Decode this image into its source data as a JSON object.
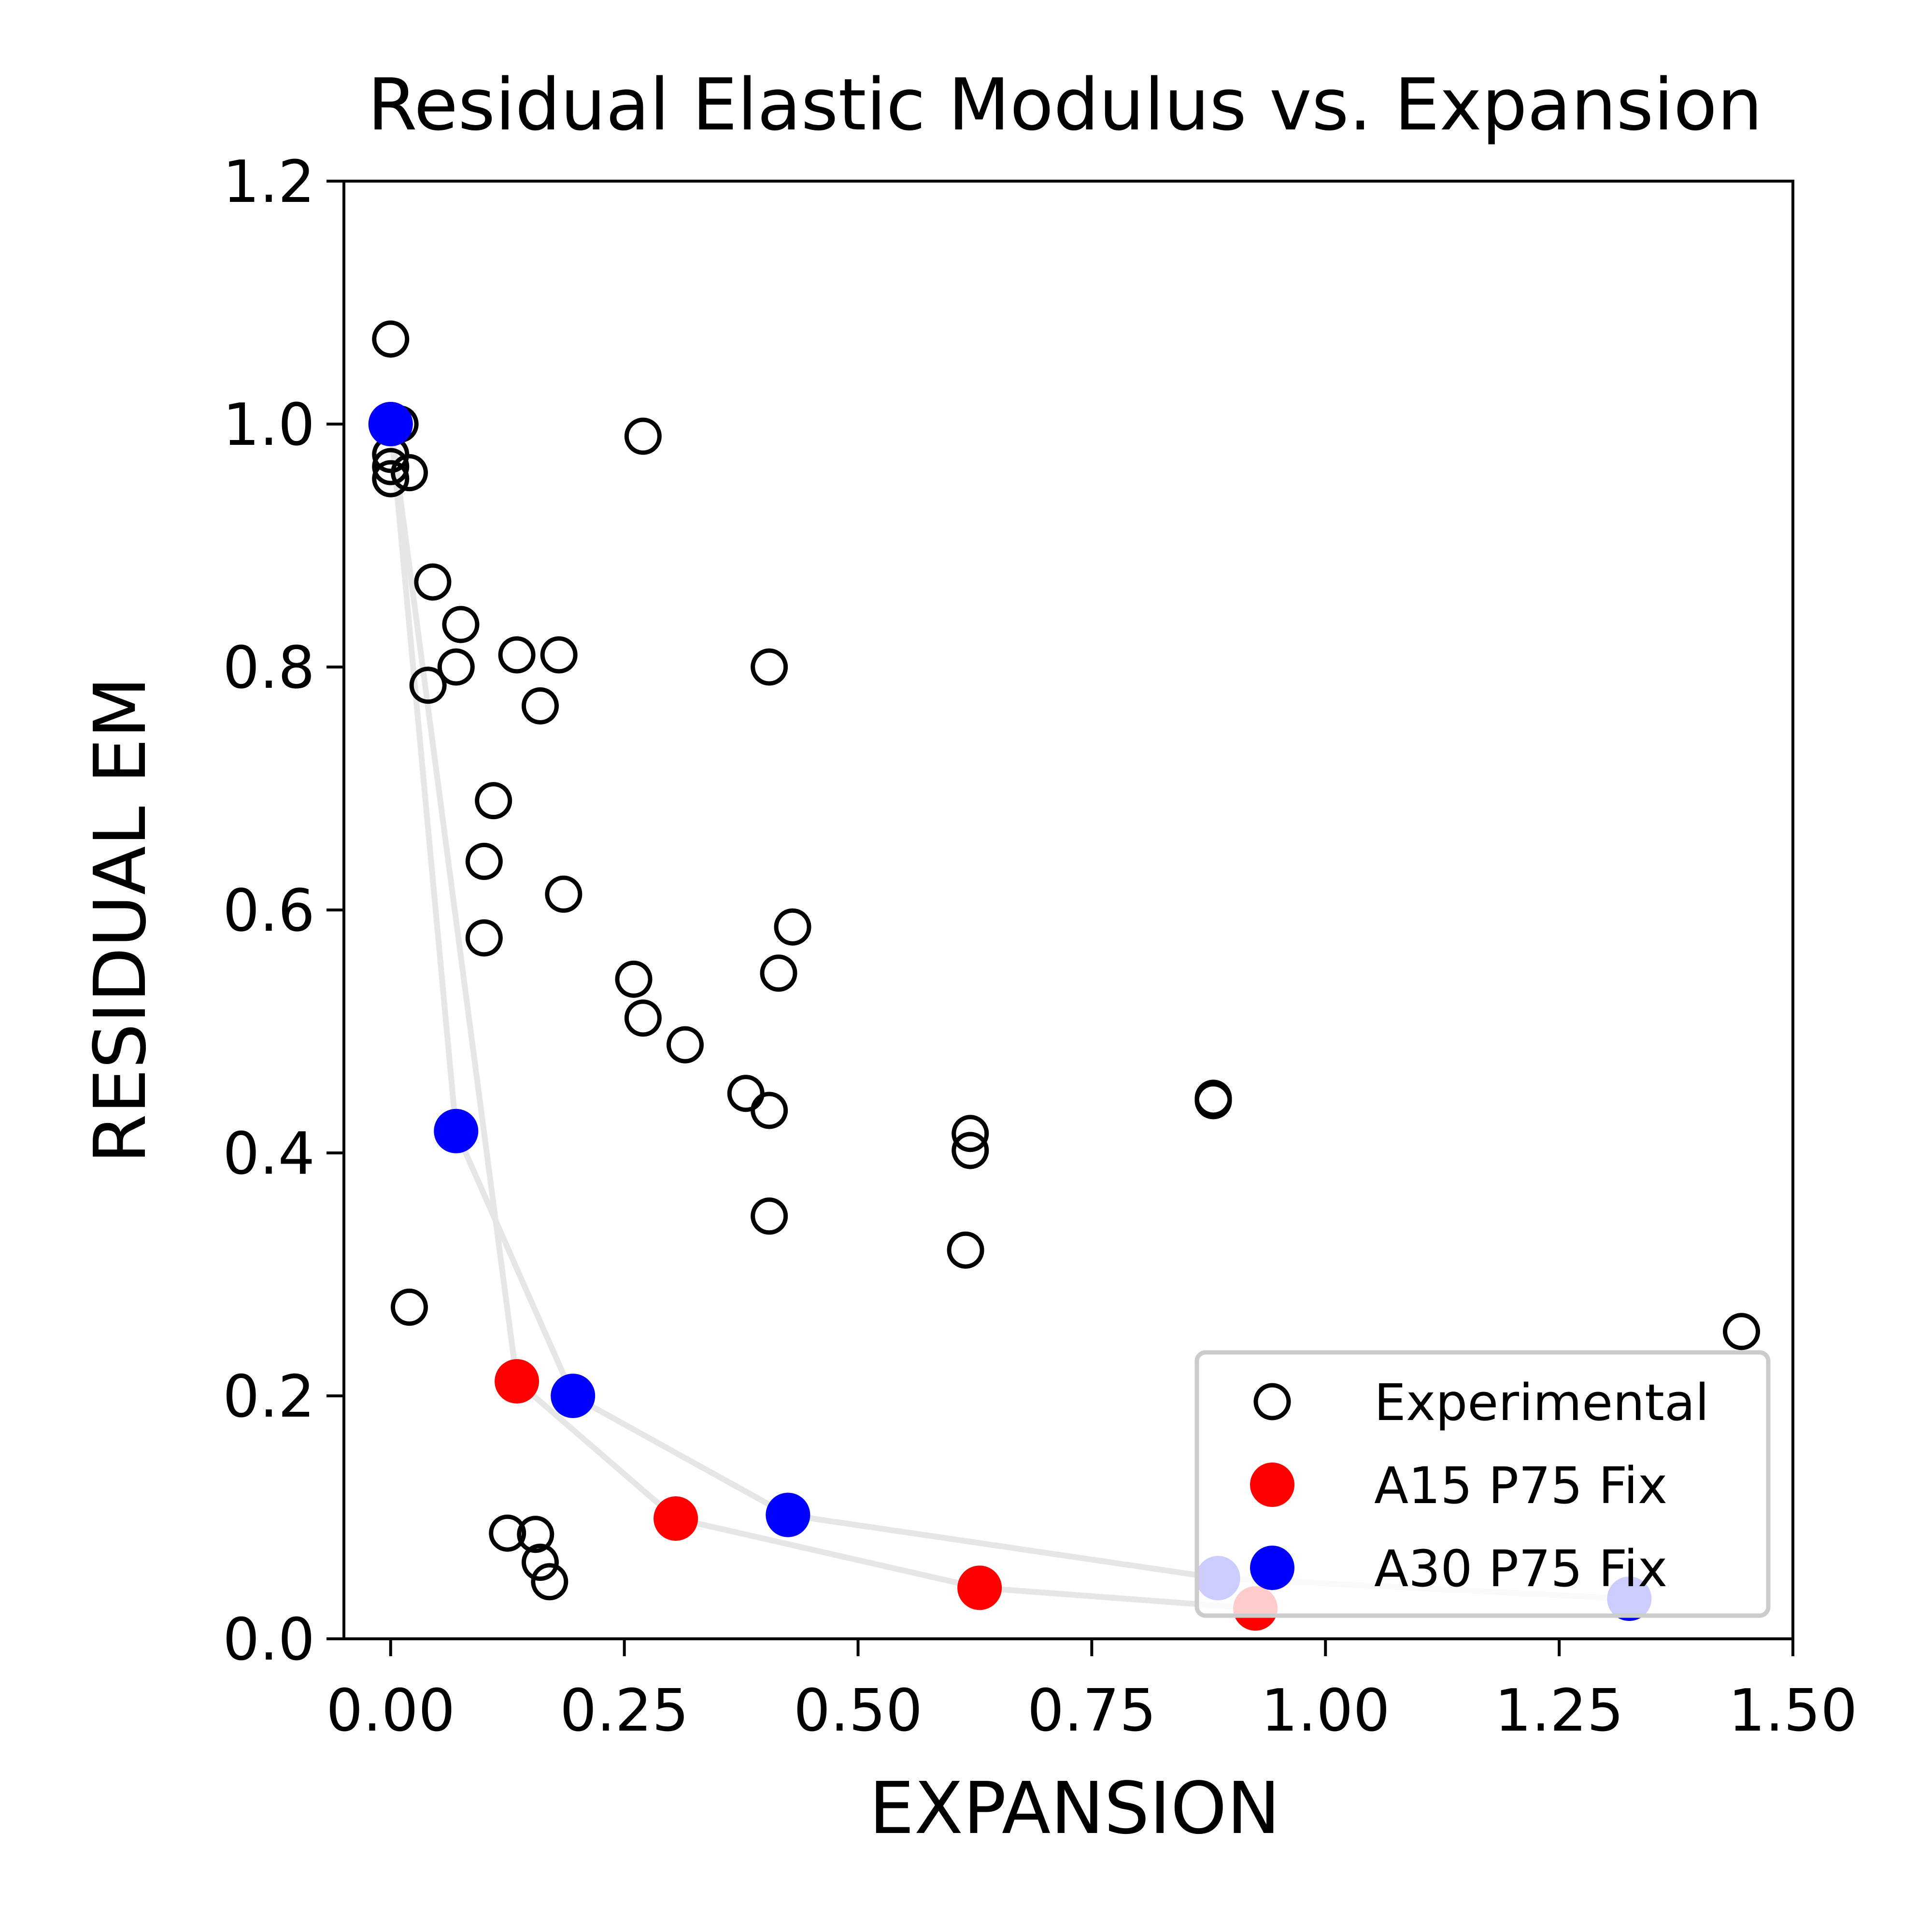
{
  "chart_data": {
    "type": "scatter",
    "title": "Residual Elastic Modulus vs. Expansion",
    "xlabel": "EXPANSION",
    "ylabel": "RESIDUAL EM",
    "xlim": [
      -0.05,
      1.5
    ],
    "ylim": [
      0,
      1.2
    ],
    "xticks": [
      0.0,
      0.25,
      0.5,
      0.75,
      1.0,
      1.25,
      1.5
    ],
    "xtick_labels": [
      "0.00",
      "0.25",
      "0.50",
      "0.75",
      "1.00",
      "1.25",
      "1.50"
    ],
    "yticks": [
      0.0,
      0.2,
      0.4,
      0.6,
      0.8,
      1.0,
      1.2
    ],
    "ytick_labels": [
      "0.0",
      "0.2",
      "0.4",
      "0.6",
      "0.8",
      "1.0",
      "1.2"
    ],
    "grid": false,
    "legend_position": "lower right",
    "series": [
      {
        "name": "Experimental",
        "marker": "open-circle",
        "color": "#000000",
        "points": [
          [
            0.0,
            1.07
          ],
          [
            0.0,
            1.0
          ],
          [
            0.01,
            1.0
          ],
          [
            0.0,
            0.975
          ],
          [
            0.0,
            0.965
          ],
          [
            0.0,
            0.955
          ],
          [
            0.02,
            0.96
          ],
          [
            0.045,
            0.87
          ],
          [
            0.075,
            0.835
          ],
          [
            0.07,
            0.8
          ],
          [
            0.04,
            0.785
          ],
          [
            0.135,
            0.81
          ],
          [
            0.18,
            0.81
          ],
          [
            0.16,
            0.768
          ],
          [
            0.27,
            0.99
          ],
          [
            0.405,
            0.8
          ],
          [
            0.11,
            0.69
          ],
          [
            0.1,
            0.64
          ],
          [
            0.1,
            0.577
          ],
          [
            0.185,
            0.613
          ],
          [
            0.43,
            0.586
          ],
          [
            0.415,
            0.548
          ],
          [
            0.26,
            0.543
          ],
          [
            0.27,
            0.511
          ],
          [
            0.315,
            0.489
          ],
          [
            0.38,
            0.449
          ],
          [
            0.405,
            0.435
          ],
          [
            0.405,
            0.348
          ],
          [
            0.62,
            0.416
          ],
          [
            0.62,
            0.402
          ],
          [
            0.615,
            0.32
          ],
          [
            0.88,
            0.445
          ],
          [
            0.88,
            0.443
          ],
          [
            0.02,
            0.273
          ],
          [
            1.445,
            0.253
          ],
          [
            0.125,
            0.087
          ],
          [
            0.155,
            0.086
          ],
          [
            0.16,
            0.063
          ],
          [
            0.17,
            0.047
          ]
        ]
      },
      {
        "name": "A15 P75 Fix",
        "marker": "filled-circle",
        "color": "#ff0000",
        "points": [
          [
            0.0,
            1.0
          ],
          [
            0.135,
            0.212
          ],
          [
            0.305,
            0.099
          ],
          [
            0.63,
            0.042
          ],
          [
            0.925,
            0.025
          ]
        ]
      },
      {
        "name": "A30 P75 Fix",
        "marker": "filled-circle",
        "color": "#0000ff",
        "points": [
          [
            0.0,
            1.0
          ],
          [
            0.07,
            0.418
          ],
          [
            0.195,
            0.2
          ],
          [
            0.425,
            0.102
          ],
          [
            0.885,
            0.05
          ],
          [
            1.325,
            0.033
          ]
        ]
      }
    ],
    "connector_color": "#e6e6e6",
    "legend_frame_color": "#cccccc"
  }
}
